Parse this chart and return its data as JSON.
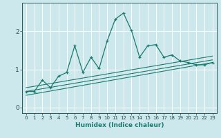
{
  "xlabel": "Humidex (Indice chaleur)",
  "background_color": "#cce8ed",
  "grid_color": "#ffffff",
  "line_color": "#1a7a6e",
  "xlim": [
    -0.5,
    23.5
  ],
  "ylim": [
    -0.15,
    2.75
  ],
  "xticks": [
    0,
    1,
    2,
    3,
    4,
    5,
    6,
    7,
    8,
    9,
    10,
    11,
    12,
    13,
    14,
    15,
    16,
    17,
    18,
    19,
    20,
    21,
    22,
    23
  ],
  "yticks": [
    0,
    1,
    2
  ],
  "main_x": [
    0,
    1,
    2,
    3,
    4,
    5,
    6,
    7,
    8,
    9,
    10,
    11,
    12,
    13,
    14,
    15,
    16,
    17,
    18,
    19,
    20,
    21,
    22,
    23
  ],
  "main_y": [
    0.42,
    0.42,
    0.72,
    0.52,
    0.82,
    0.92,
    1.62,
    0.92,
    1.32,
    1.02,
    1.75,
    2.32,
    2.48,
    2.02,
    1.32,
    1.62,
    1.65,
    1.32,
    1.38,
    1.22,
    1.18,
    1.12,
    1.12,
    1.18
  ],
  "line1_x": [
    0,
    23
  ],
  "line1_y": [
    0.32,
    1.18
  ],
  "line2_x": [
    0,
    23
  ],
  "line2_y": [
    0.42,
    1.25
  ],
  "line3_x": [
    0,
    23
  ],
  "line3_y": [
    0.52,
    1.35
  ]
}
